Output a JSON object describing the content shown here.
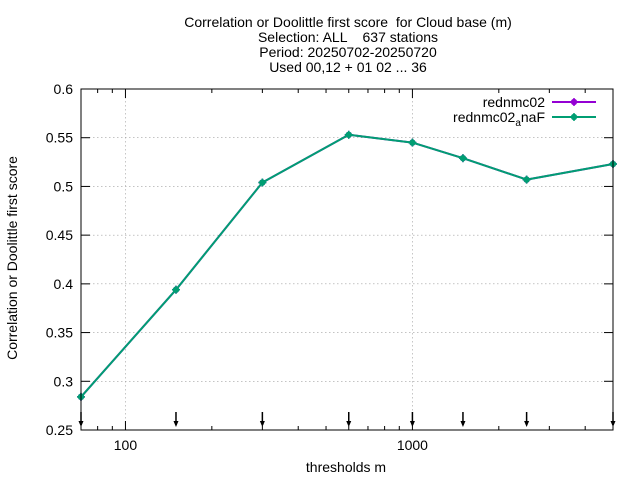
{
  "chart_data": {
    "type": "line",
    "title_lines": [
      "Correlation or Doolittle first score  for Cloud base (m)",
      "Selection: ALL    637 stations",
      "Period: 20250702-20250720",
      "Used 00,12 + 01 02 ... 36"
    ],
    "xlabel": "thresholds m",
    "ylabel": "Correlation or Doolittle first score",
    "x_scale": "log",
    "xlim": [
      70,
      5000
    ],
    "ylim": [
      0.25,
      0.6
    ],
    "x_ticks": [
      {
        "value": 100,
        "label": "100"
      },
      {
        "value": 1000,
        "label": "1000"
      }
    ],
    "y_ticks": [
      {
        "value": 0.25,
        "label": "0.25"
      },
      {
        "value": 0.3,
        "label": "0.3"
      },
      {
        "value": 0.35,
        "label": "0.35"
      },
      {
        "value": 0.4,
        "label": "0.4"
      },
      {
        "value": 0.45,
        "label": "0.45"
      },
      {
        "value": 0.5,
        "label": "0.5"
      },
      {
        "value": 0.55,
        "label": "0.55"
      },
      {
        "value": 0.6,
        "label": "0.6"
      }
    ],
    "grid": true,
    "legend_position": "top-right",
    "x": [
      70,
      150,
      300,
      600,
      1000,
      1500,
      2500,
      5000
    ],
    "series": [
      {
        "name": "rednmc02",
        "color": "#9400d3",
        "values": [
          0.284,
          0.394,
          0.504,
          0.553,
          0.545,
          0.529,
          0.507,
          0.523
        ]
      },
      {
        "name_base": "rednmc02",
        "name_sub": "a",
        "name_rest": "naF",
        "color": "#009e73",
        "values": [
          0.284,
          0.394,
          0.504,
          0.553,
          0.545,
          0.529,
          0.507,
          0.523
        ]
      }
    ]
  }
}
